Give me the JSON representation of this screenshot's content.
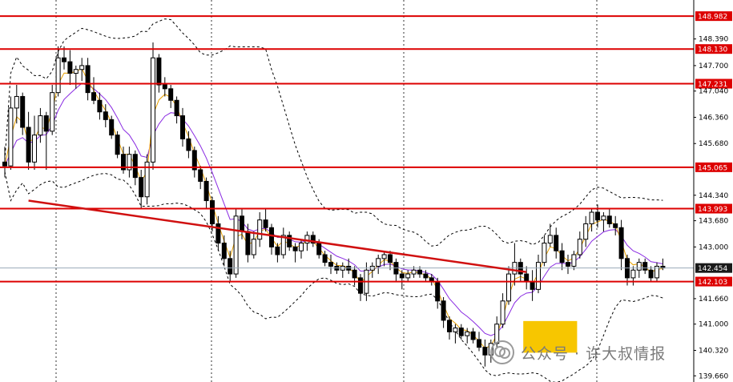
{
  "chart_data": {
    "type": "candlestick",
    "ylim": [
      139.5,
      149.4
    ],
    "price_axis": {
      "ticks": [
        "148.390",
        "147.700",
        "147.040",
        "146.360",
        "145.680",
        "144.340",
        "143.680",
        "143.000",
        "141.660",
        "141.000",
        "140.320",
        "139.660"
      ]
    },
    "levels": [
      {
        "value": 148.982,
        "label": "148.982"
      },
      {
        "value": 148.13,
        "label": "148.130"
      },
      {
        "value": 147.231,
        "label": "147.231"
      },
      {
        "value": 145.065,
        "label": "145.065"
      },
      {
        "value": 143.993,
        "label": "143.993"
      },
      {
        "value": 142.103,
        "label": "142.103"
      }
    ],
    "current_price": {
      "value": 142.454,
      "label": "142.454"
    },
    "trendline": {
      "from": [
        4,
        144.2
      ],
      "to": [
        88,
        142.35
      ]
    },
    "highlight_box": {
      "from_index": 88,
      "to_index": 96,
      "low": 140.26,
      "high": 141.08
    },
    "candles": [
      [
        145.2,
        145.6,
        144.8,
        145.1
      ],
      [
        145.1,
        146.9,
        145.0,
        146.6
      ],
      [
        146.6,
        147.2,
        146.2,
        146.9
      ],
      [
        146.9,
        147.0,
        145.9,
        146.1
      ],
      [
        146.1,
        146.5,
        145.0,
        145.2
      ],
      [
        145.2,
        146.4,
        145.0,
        145.9
      ],
      [
        145.9,
        146.6,
        145.7,
        146.4
      ],
      [
        146.4,
        146.5,
        145.0,
        146.0
      ],
      [
        146.0,
        147.2,
        145.9,
        147.0
      ],
      [
        147.0,
        148.2,
        146.9,
        147.9
      ],
      [
        147.9,
        148.2,
        147.6,
        147.8
      ],
      [
        147.8,
        148.1,
        147.2,
        147.5
      ],
      [
        147.5,
        147.7,
        147.1,
        147.6
      ],
      [
        147.6,
        147.9,
        147.3,
        147.7
      ],
      [
        147.7,
        147.9,
        146.8,
        147.0
      ],
      [
        147.0,
        147.4,
        146.7,
        146.8
      ],
      [
        146.8,
        147.0,
        146.3,
        146.5
      ],
      [
        146.5,
        146.7,
        146.1,
        146.3
      ],
      [
        146.3,
        146.4,
        145.8,
        145.9
      ],
      [
        145.9,
        146.0,
        145.3,
        145.4
      ],
      [
        145.4,
        145.6,
        144.9,
        145.0
      ],
      [
        145.0,
        145.6,
        144.8,
        145.4
      ],
      [
        145.4,
        145.5,
        144.6,
        144.8
      ],
      [
        144.8,
        145.0,
        144.0,
        144.3
      ],
      [
        144.3,
        145.4,
        144.1,
        145.2
      ],
      [
        145.2,
        148.3,
        145.0,
        147.9
      ],
      [
        147.9,
        148.0,
        147.0,
        147.2
      ],
      [
        147.2,
        147.4,
        146.9,
        147.1
      ],
      [
        147.1,
        147.2,
        146.6,
        146.8
      ],
      [
        146.8,
        146.9,
        146.2,
        146.4
      ],
      [
        146.4,
        146.6,
        145.6,
        145.8
      ],
      [
        145.8,
        146.0,
        145.3,
        145.5
      ],
      [
        145.5,
        145.6,
        144.8,
        145.0
      ],
      [
        145.0,
        145.1,
        144.5,
        144.7
      ],
      [
        144.7,
        144.8,
        144.0,
        144.2
      ],
      [
        144.2,
        144.3,
        143.4,
        143.6
      ],
      [
        143.6,
        143.8,
        142.9,
        143.1
      ],
      [
        143.1,
        143.3,
        142.5,
        142.7
      ],
      [
        142.7,
        142.9,
        142.1,
        142.3
      ],
      [
        142.3,
        144.0,
        142.2,
        143.8
      ],
      [
        143.8,
        144.0,
        143.2,
        143.4
      ],
      [
        143.4,
        143.6,
        142.6,
        142.8
      ],
      [
        142.8,
        143.4,
        142.7,
        143.2
      ],
      [
        143.2,
        143.9,
        143.0,
        143.7
      ],
      [
        143.7,
        144.0,
        143.4,
        143.5
      ],
      [
        143.5,
        143.6,
        142.8,
        143.0
      ],
      [
        143.0,
        143.1,
        142.6,
        142.8
      ],
      [
        142.8,
        143.5,
        142.7,
        143.3
      ],
      [
        143.3,
        143.4,
        142.9,
        143.0
      ],
      [
        143.0,
        143.1,
        142.6,
        142.9
      ],
      [
        142.9,
        143.2,
        142.7,
        143.1
      ],
      [
        143.1,
        143.4,
        142.9,
        143.3
      ],
      [
        143.3,
        143.4,
        143.0,
        143.1
      ],
      [
        143.1,
        143.2,
        142.7,
        142.8
      ],
      [
        142.8,
        142.9,
        142.5,
        142.6
      ],
      [
        142.6,
        142.8,
        142.3,
        142.5
      ],
      [
        142.5,
        142.6,
        142.3,
        142.4
      ],
      [
        142.4,
        142.6,
        142.2,
        142.5
      ],
      [
        142.5,
        142.7,
        142.3,
        142.4
      ],
      [
        142.4,
        142.5,
        142.0,
        142.2
      ],
      [
        142.2,
        142.3,
        141.6,
        141.8
      ],
      [
        141.8,
        142.6,
        141.6,
        142.4
      ],
      [
        142.4,
        142.6,
        142.2,
        142.5
      ],
      [
        142.5,
        142.8,
        142.3,
        142.7
      ],
      [
        142.7,
        142.9,
        142.5,
        142.8
      ],
      [
        142.8,
        142.9,
        142.4,
        142.6
      ],
      [
        142.6,
        142.7,
        142.1,
        142.3
      ],
      [
        142.3,
        142.4,
        141.9,
        142.2
      ],
      [
        142.2,
        142.4,
        142.1,
        142.3
      ],
      [
        142.3,
        142.5,
        142.2,
        142.4
      ],
      [
        142.4,
        142.5,
        142.2,
        142.3
      ],
      [
        142.3,
        142.4,
        142.1,
        142.2
      ],
      [
        142.2,
        142.3,
        142.0,
        142.1
      ],
      [
        142.1,
        142.2,
        141.4,
        141.6
      ],
      [
        141.6,
        141.7,
        140.9,
        141.1
      ],
      [
        141.1,
        141.2,
        140.6,
        140.8
      ],
      [
        140.8,
        141.0,
        140.5,
        140.9
      ],
      [
        140.9,
        141.0,
        140.6,
        140.7
      ],
      [
        140.7,
        140.9,
        140.5,
        140.8
      ],
      [
        140.8,
        140.9,
        140.5,
        140.6
      ],
      [
        140.6,
        140.8,
        140.3,
        140.4
      ],
      [
        140.4,
        140.6,
        139.9,
        140.2
      ],
      [
        140.2,
        140.6,
        140.0,
        140.5
      ],
      [
        140.5,
        141.2,
        140.4,
        141.0
      ],
      [
        141.0,
        141.8,
        140.9,
        141.6
      ],
      [
        141.6,
        142.5,
        141.5,
        142.3
      ],
      [
        142.3,
        143.1,
        142.0,
        142.6
      ],
      [
        142.6,
        142.7,
        142.1,
        142.3
      ],
      [
        142.3,
        142.5,
        141.9,
        142.1
      ],
      [
        142.1,
        142.4,
        141.6,
        141.9
      ],
      [
        141.9,
        142.8,
        141.8,
        142.6
      ],
      [
        142.6,
        143.3,
        142.5,
        143.1
      ],
      [
        143.1,
        143.6,
        143.0,
        143.3
      ],
      [
        143.3,
        143.5,
        142.7,
        142.9
      ],
      [
        142.9,
        143.1,
        142.4,
        142.6
      ],
      [
        142.6,
        142.8,
        142.3,
        142.5
      ],
      [
        142.5,
        142.9,
        142.4,
        142.8
      ],
      [
        142.8,
        143.4,
        142.7,
        143.2
      ],
      [
        143.2,
        143.8,
        143.0,
        143.6
      ],
      [
        143.6,
        144.0,
        143.4,
        143.9
      ],
      [
        143.9,
        144.1,
        143.5,
        143.7
      ],
      [
        143.7,
        143.9,
        143.4,
        143.8
      ],
      [
        143.8,
        144.0,
        143.5,
        143.6
      ],
      [
        143.6,
        143.8,
        143.3,
        143.5
      ],
      [
        143.5,
        143.7,
        142.4,
        142.7
      ],
      [
        142.7,
        142.8,
        142.0,
        142.2
      ],
      [
        142.2,
        142.5,
        142.0,
        142.4
      ],
      [
        142.4,
        142.7,
        142.2,
        142.6
      ],
      [
        142.6,
        142.7,
        142.3,
        142.4
      ],
      [
        142.4,
        142.5,
        142.1,
        142.2
      ],
      [
        142.2,
        142.6,
        142.1,
        142.5
      ],
      [
        142.5,
        142.7,
        142.4,
        142.454
      ]
    ]
  },
  "watermark": {
    "text": "公众号 · 许大叔情报"
  },
  "colors": {
    "level": "#dd0000",
    "level_label_bg": "#dd0000",
    "trendline": "#d01010",
    "ma_fast": "#e8a000",
    "ma_slow": "#8a2be2",
    "bands": "#000000",
    "highlight": "#f7c600",
    "current_price_line": "#9aaab8"
  }
}
